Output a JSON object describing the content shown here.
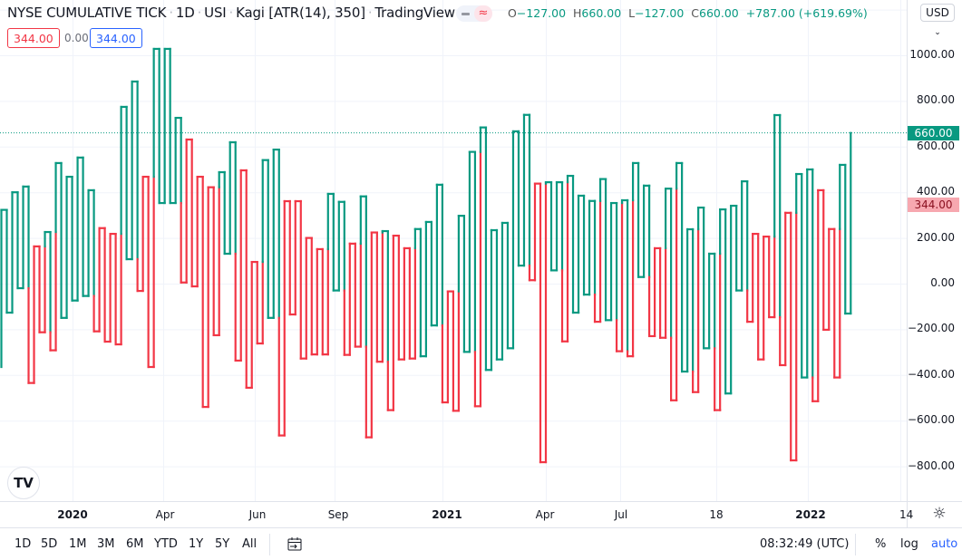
{
  "header": {
    "symbol": "NYSE CUMULATIVE TICK",
    "interval": "1D",
    "exchange": "USI",
    "chart_style": "Kagi [ATR(14), 350]",
    "source": "TradingView",
    "sep": "·",
    "legend_wave_icon": "≈"
  },
  "ohlc": {
    "o_label": "O",
    "o": "−127.00",
    "h_label": "H",
    "h": "660.00",
    "l_label": "L",
    "l": "−127.00",
    "c_label": "C",
    "c": "660.00",
    "change": "+787.00 (+619.69%)"
  },
  "indicator_row": {
    "sell": "344.00",
    "spread": "0.00",
    "buy": "344.00"
  },
  "price_axis": {
    "currency": "USD",
    "ticks": [
      "1000.00",
      "800.00",
      "600.00",
      "400.00",
      "200.00",
      "0.00",
      "−200.00",
      "−400.00",
      "−600.00",
      "−800.00"
    ],
    "last_price_label": "660.00",
    "bid_label": "344.00"
  },
  "time_axis": {
    "ticks": [
      "2020",
      "Apr",
      "Jun",
      "Sep",
      "2021",
      "Apr",
      "Jul",
      "18",
      "2022",
      "14"
    ]
  },
  "bottom_bar": {
    "ranges": [
      "1D",
      "5D",
      "1M",
      "3M",
      "6M",
      "YTD",
      "1Y",
      "5Y",
      "All"
    ],
    "clock": "08:32:49 (UTC)",
    "percent": "%",
    "log": "log",
    "auto": "auto"
  },
  "colors": {
    "up": "#089981",
    "down": "#f23645",
    "accent": "#2962ff",
    "bid_tag_bg": "#f7a8b0"
  },
  "chart_data": {
    "type": "kagi",
    "reversal": "ATR(14)",
    "ylim": [
      -950,
      1200
    ],
    "yticks": [
      1000,
      800,
      600,
      400,
      200,
      0,
      -200,
      -400,
      -600,
      -800
    ],
    "last_price": 660,
    "bid_price": 344,
    "turning_points": [
      -365,
      323,
      -127,
      400,
      -20,
      425,
      -435,
      163,
      -213,
      226,
      -292,
      528,
      -150,
      468,
      -74,
      552,
      -54,
      409,
      -209,
      243,
      -254,
      218,
      -266,
      774,
      107,
      885,
      -32,
      468,
      -365,
      1028,
      353,
      1028,
      353,
      726,
      5,
      631,
      -12,
      468,
      -540,
      422,
      -226,
      488,
      131,
      619,
      -337,
      496,
      -456,
      95,
      -262,
      541,
      -150,
      587,
      -665,
      361,
      -135,
      361,
      -328,
      200,
      -310,
      151,
      -310,
      393,
      -30,
      358,
      -312,
      175,
      -276,
      382,
      -673,
      224,
      -342,
      230,
      -554,
      210,
      -332,
      155,
      -328,
      239,
      -318,
      270,
      -183,
      433,
      -520,
      -34,
      -557,
      297,
      -299,
      577,
      -537,
      684,
      -378,
      234,
      -332,
      266,
      -283,
      667,
      79,
      739,
      15,
      438,
      -782,
      444,
      58,
      444,
      -253,
      472,
      -127,
      385,
      -48,
      362,
      -167,
      458,
      -160,
      353,
      -296,
      365,
      -318,
      528,
      29,
      429,
      -230,
      155,
      -237,
      416,
      -511,
      528,
      -385,
      238,
      -475,
      333,
      -283,
      131,
      -554,
      325,
      -481,
      341,
      -30,
      448,
      -167,
      218,
      -332,
      206,
      -147,
      738,
      -357,
      310,
      -774,
      480,
      -411,
      500,
      -515,
      409,
      -202,
      239,
      -411,
      520,
      -131,
      660
    ]
  }
}
